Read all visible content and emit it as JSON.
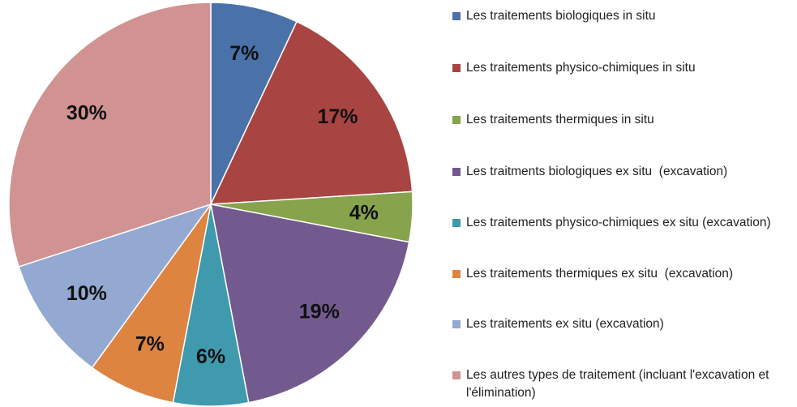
{
  "chart_data": {
    "type": "pie",
    "categories": [
      "Les traitements biologiques in situ",
      "Les traitements physico-chimiques in situ",
      "Les traitements thermiques in situ",
      "Les traitments biologiques ex situ  (excavation)",
      "Les traitements physico-chimiques ex situ (excavation)",
      "Les traitements thermiques ex situ  (excavation)",
      "Les traitements ex situ (excavation)",
      "Les autres types de traitement (incluant l'excavation et l'élimination)"
    ],
    "values": [
      7,
      17,
      4,
      19,
      6,
      7,
      10,
      30
    ],
    "value_labels": [
      "7%",
      "17%",
      "4%",
      "19%",
      "6%",
      "7%",
      "10%",
      "30%"
    ],
    "colors": [
      "#4a72a8",
      "#a84442",
      "#87a34c",
      "#725a8e",
      "#3f9aae",
      "#dc8440",
      "#93a9d1",
      "#d09392"
    ],
    "legend": "right"
  }
}
